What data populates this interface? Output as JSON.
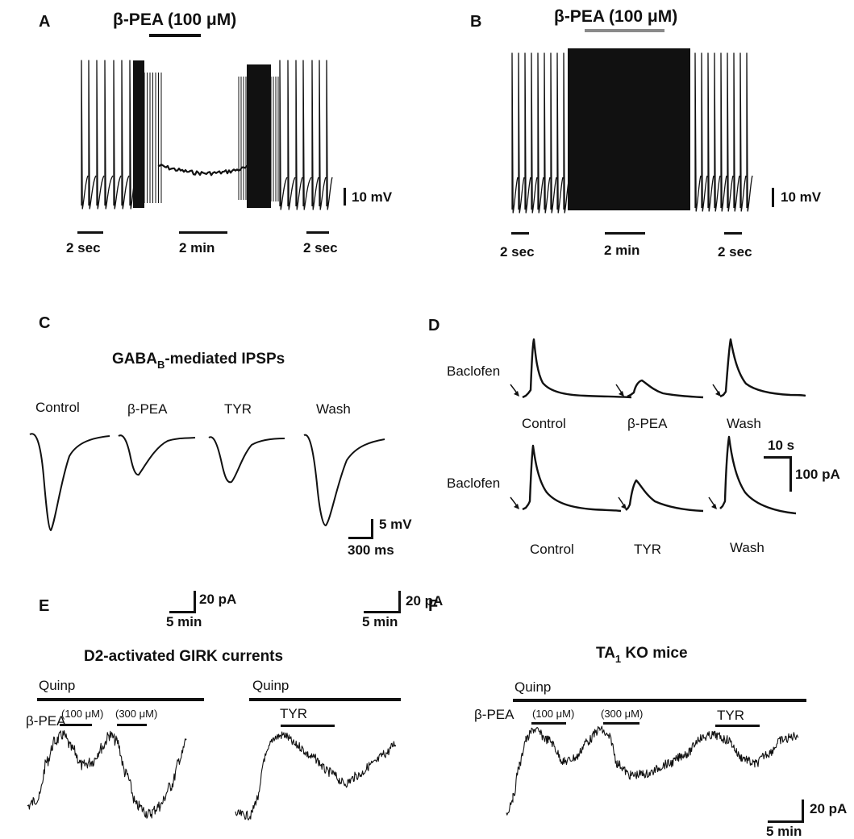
{
  "panels": {
    "A": {
      "letter": "A",
      "drug_label": "β-PEA (100 μM)",
      "scale_voltage": "10 mV",
      "time_left": "2 sec",
      "time_mid": "2 min",
      "time_right": "2 sec"
    },
    "B": {
      "letter": "B",
      "drug_label": "β-PEA (100 μM)",
      "scale_voltage": "10 mV",
      "time_left": "2 sec",
      "time_mid": "2 min",
      "time_right": "2 sec"
    },
    "C": {
      "letter": "C",
      "title_main": "GABA",
      "title_sub": "B",
      "title_rest": "-mediated IPSPs",
      "conditions": [
        "Control",
        "β-PEA",
        "TYR",
        "Wash"
      ],
      "scale_voltage": "5 mV",
      "scale_time": "300 ms"
    },
    "D": {
      "letter": "D",
      "agonist": "Baclofen",
      "row1": [
        "Control",
        "β-PEA",
        "Wash"
      ],
      "row2": [
        "Control",
        "TYR",
        "Wash"
      ],
      "scale_time": "10 s",
      "scale_current": "100 pA"
    },
    "E": {
      "letter": "E",
      "title": "D2-activated GIRK currents",
      "agonist": "Quinp",
      "drug": "β-PEA",
      "conc1": "(100 μM)",
      "conc2": "(300 μM)",
      "drug2": "TYR",
      "scale_current": "20 pA",
      "scale_time": "5 min"
    },
    "F": {
      "letter": "F",
      "title_main": "TA",
      "title_sub": "1",
      "title_rest": " KO mice",
      "agonist": "Quinp",
      "drug": "β-PEA",
      "conc1": "(100 μM)",
      "conc2": "(300 μM)",
      "drug2": "TYR",
      "scale_current": "20 pA",
      "scale_time": "5 min"
    }
  },
  "colors": {
    "ink": "#111111",
    "bar_b": "#8a8a8a"
  }
}
